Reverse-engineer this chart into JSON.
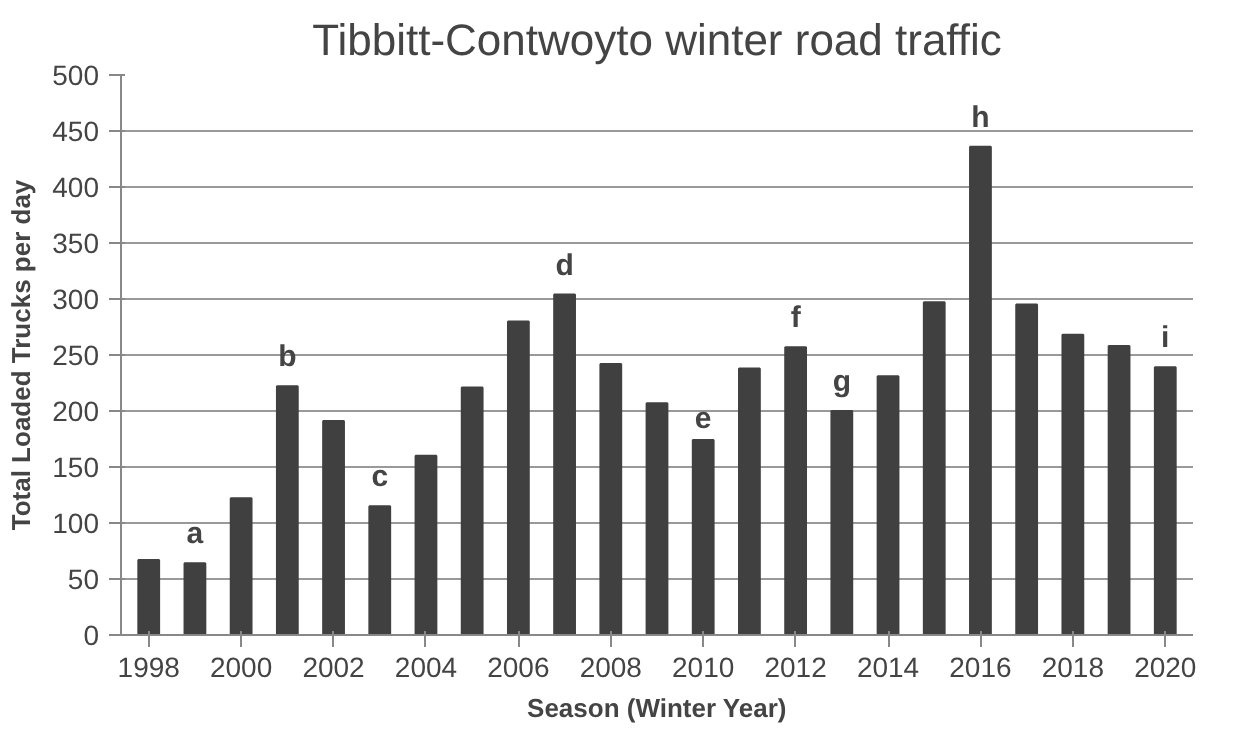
{
  "chart_data": {
    "type": "bar",
    "title": "Tibbitt-Contwoyto winter road traffic",
    "xlabel": "Season (Winter Year)",
    "ylabel": "Total Loaded Trucks per day",
    "x": [
      1998,
      1999,
      2000,
      2001,
      2002,
      2003,
      2004,
      2005,
      2006,
      2007,
      2008,
      2009,
      2010,
      2011,
      2012,
      2013,
      2014,
      2015,
      2016,
      2017,
      2018,
      2019,
      2020
    ],
    "values": [
      67,
      64,
      122,
      222,
      191,
      115,
      160,
      221,
      280,
      304,
      242,
      207,
      174,
      238,
      257,
      200,
      231,
      297,
      436,
      295,
      268,
      258,
      239
    ],
    "color": "#404040",
    "xlim": [
      1997.4,
      2020.6
    ],
    "xticks": [
      1998,
      2000,
      2002,
      2004,
      2006,
      2008,
      2010,
      2012,
      2014,
      2016,
      2018,
      2020
    ],
    "ylim": [
      0,
      500
    ],
    "yticks": [
      0,
      50,
      100,
      150,
      200,
      250,
      300,
      350,
      400,
      450,
      500
    ],
    "grid": "y",
    "annotations": [
      {
        "text": "a",
        "x": 1999,
        "y": 64
      },
      {
        "text": "b",
        "x": 2001,
        "y": 222
      },
      {
        "text": "c",
        "x": 2003,
        "y": 115
      },
      {
        "text": "d",
        "x": 2007,
        "y": 304
      },
      {
        "text": "e",
        "x": 2010,
        "y": 174
      },
      {
        "text": "f",
        "x": 2012,
        "y": 257
      },
      {
        "text": "g",
        "x": 2013,
        "y": 200
      },
      {
        "text": "h",
        "x": 2016,
        "y": 436
      },
      {
        "text": "i",
        "x": 2020,
        "y": 239
      }
    ]
  }
}
